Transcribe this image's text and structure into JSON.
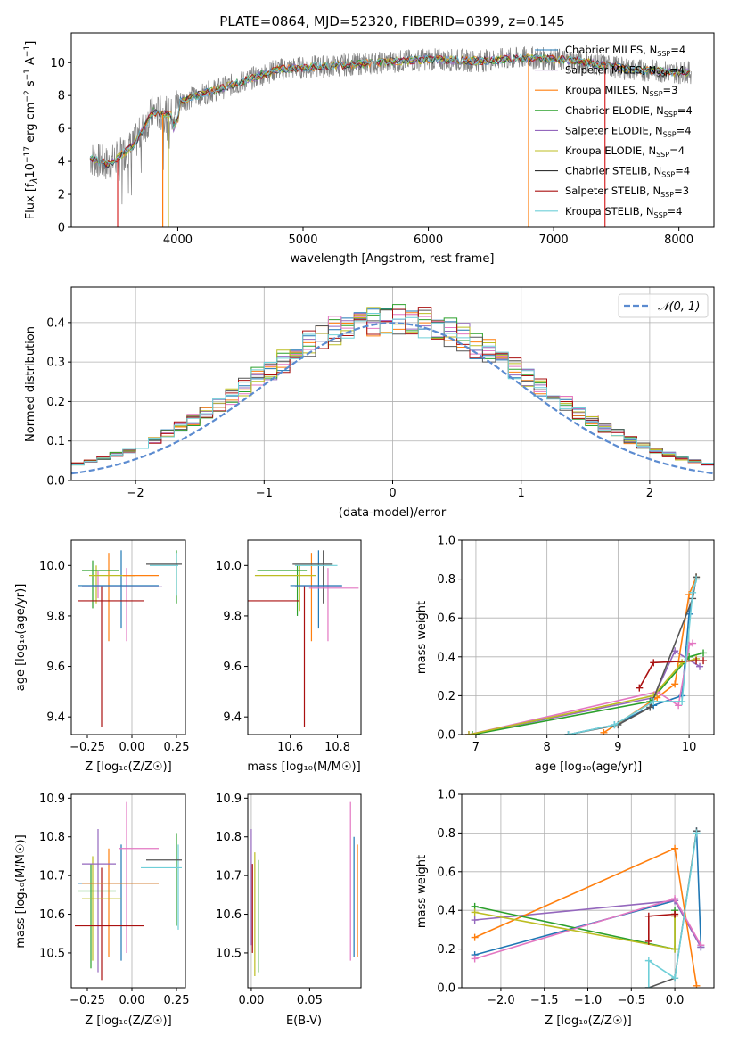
{
  "chart_data": [
    {
      "id": "spectrum",
      "type": "line",
      "title": "PLATE=0864, MJD=52320, FIBERID=0399, z=0.145",
      "xlabel": "wavelength [Angstrom, rest frame]",
      "ylabel_parts": [
        "Flux [f",
        "λ",
        "10",
        "−17",
        " erg cm",
        "−2",
        " s",
        "−1",
        " A",
        "−1",
        "]"
      ],
      "xlim": [
        3150,
        8280
      ],
      "ylim": [
        0,
        11.8
      ],
      "xticks": [
        4000,
        5000,
        6000,
        7000,
        8000
      ],
      "yticks": [
        0,
        2,
        4,
        6,
        8,
        10
      ],
      "continuum_knots": [
        [
          3300,
          4.2
        ],
        [
          3450,
          3.8
        ],
        [
          3650,
          5.0
        ],
        [
          3800,
          7.0
        ],
        [
          3950,
          6.8
        ],
        [
          4000,
          7.6
        ],
        [
          4200,
          8.1
        ],
        [
          4500,
          8.8
        ],
        [
          4800,
          9.6
        ],
        [
          5200,
          9.8
        ],
        [
          5600,
          10.0
        ],
        [
          6000,
          10.2
        ],
        [
          6400,
          10.1
        ],
        [
          6800,
          10.3
        ],
        [
          7200,
          10.1
        ],
        [
          7600,
          9.6
        ],
        [
          8000,
          9.4
        ],
        [
          8100,
          9.4
        ]
      ],
      "observed": {
        "color": "#808080",
        "x_range": [
          3300,
          8100
        ],
        "noise": 1.4
      },
      "model_spikes": [
        {
          "x": 3520,
          "color": "#d62728"
        },
        {
          "x": 3880,
          "color": "#ff7f0e"
        },
        {
          "x": 3925,
          "color": "#bcbd22"
        },
        {
          "x": 6800,
          "color": "#ff7f0e"
        },
        {
          "x": 7410,
          "color": "#d62728"
        }
      ],
      "legend_position": "top-right",
      "series": [
        {
          "name": "Chabrier MILES, N",
          "sub": "SSP",
          "suffix": "=4",
          "color": "#1f77b4"
        },
        {
          "name": "Salpeter MILES, N",
          "sub": "SSP",
          "suffix": "=4",
          "color": "#9467bd"
        },
        {
          "name": "Kroupa MILES, N",
          "sub": "SSP",
          "suffix": "=3",
          "color": "#ff7f0e"
        },
        {
          "name": "Chabrier ELODIE, N",
          "sub": "SSP",
          "suffix": "=4",
          "color": "#2ca02c"
        },
        {
          "name": "Salpeter ELODIE, N",
          "sub": "SSP",
          "suffix": "=4",
          "color": "#9467bd"
        },
        {
          "name": "Kroupa ELODIE, N",
          "sub": "SSP",
          "suffix": "=4",
          "color": "#bcbd22"
        },
        {
          "name": "Chabrier STELIB, N",
          "sub": "SSP",
          "suffix": "=4",
          "color": "#333333"
        },
        {
          "name": "Salpeter STELIB, N",
          "sub": "SSP",
          "suffix": "=3",
          "color": "#aa1111"
        },
        {
          "name": "Kroupa STELIB, N",
          "sub": "SSP",
          "suffix": "=4",
          "color": "#6fcfd8"
        }
      ]
    },
    {
      "id": "residuals",
      "type": "line",
      "xlabel": "(data-model)/error",
      "ylabel": "Normed distribution",
      "xlim": [
        -2.5,
        2.5
      ],
      "ylim": [
        0,
        0.49
      ],
      "xticks": [
        -2,
        -1,
        0,
        1,
        2
      ],
      "yticks": [
        0.0,
        0.1,
        0.2,
        0.3,
        0.4
      ],
      "grid": true,
      "legend_position": "top-right",
      "legend_label": "𝒩(0, 1)",
      "gaussian_color": "#5b8bd0",
      "hist_colors": [
        "#1f77b4",
        "#9467bd",
        "#ff7f0e",
        "#2ca02c",
        "#e377c2",
        "#bcbd22",
        "#555555",
        "#aa1111",
        "#6fcfd8"
      ],
      "bin_width": 0.1
    },
    {
      "id": "age_vs_Z",
      "type": "scatter",
      "xlabel": "Z [log₁₀(Z/Z☉)]",
      "ylabel": "age  [log₁₀(age/yr)]",
      "xlim": [
        -0.34,
        0.3
      ],
      "ylim": [
        9.33,
        10.1
      ],
      "xticks": [
        -0.25,
        0.0,
        0.25
      ],
      "yticks": [
        9.4,
        9.6,
        9.8,
        10.0
      ],
      "xtick_labels": [
        "−0.25",
        "0.00",
        "0.25"
      ],
      "yspans": [
        [
          -0.22,
          9.83,
          10.02,
          "#2ca02c"
        ],
        [
          -0.2,
          9.85,
          10.0,
          "#bcbd22"
        ],
        [
          -0.19,
          9.87,
          9.98,
          "#e377c2"
        ],
        [
          -0.17,
          9.36,
          9.92,
          "#aa1111"
        ],
        [
          -0.13,
          9.7,
          10.05,
          "#ff7f0e"
        ],
        [
          -0.06,
          9.75,
          10.06,
          "#1f77b4"
        ],
        [
          -0.03,
          9.7,
          9.99,
          "#e377c2"
        ],
        [
          0.25,
          9.85,
          10.06,
          "#2ca02c"
        ],
        [
          0.25,
          9.88,
          10.05,
          "#6fcfd8"
        ]
      ],
      "xspans": [
        [
          -0.28,
          -0.07,
          9.98,
          "#2ca02c"
        ],
        [
          -0.24,
          0.02,
          9.96,
          "#bcbd22"
        ],
        [
          -0.3,
          0.15,
          9.92,
          "#1f77b4"
        ],
        [
          -0.28,
          0.17,
          9.915,
          "#9467bd"
        ],
        [
          -0.3,
          0.07,
          9.86,
          "#aa1111"
        ],
        [
          -0.05,
          0.15,
          9.96,
          "#ff7f0e"
        ],
        [
          0.08,
          0.28,
          10.005,
          "#555555"
        ],
        [
          0.1,
          0.26,
          10.0,
          "#6fcfd8"
        ]
      ]
    },
    {
      "id": "age_vs_mass",
      "type": "scatter",
      "xlabel": "mass [log₁₀(M/M☉)]",
      "xlim": [
        10.42,
        10.9
      ],
      "ylim": [
        9.33,
        10.1
      ],
      "xticks": [
        10.6,
        10.8
      ],
      "yticks": [
        9.4,
        9.6,
        9.8,
        10.0
      ],
      "yspans": [
        [
          10.63,
          9.8,
          10.0,
          "#2ca02c"
        ],
        [
          10.64,
          9.82,
          10.0,
          "#bcbd22"
        ],
        [
          10.66,
          9.36,
          9.92,
          "#aa1111"
        ],
        [
          10.69,
          9.7,
          10.05,
          "#ff7f0e"
        ],
        [
          10.72,
          9.75,
          10.06,
          "#1f77b4"
        ],
        [
          10.76,
          9.7,
          9.99,
          "#e377c2"
        ],
        [
          10.74,
          9.85,
          10.06,
          "#555555"
        ]
      ],
      "xspans": [
        [
          10.46,
          10.67,
          9.98,
          "#2ca02c"
        ],
        [
          10.45,
          10.71,
          9.96,
          "#bcbd22"
        ],
        [
          10.6,
          10.82,
          9.92,
          "#1f77b4"
        ],
        [
          10.62,
          10.82,
          9.915,
          "#9467bd"
        ],
        [
          10.68,
          10.89,
          9.91,
          "#e377c2"
        ],
        [
          10.42,
          10.64,
          9.86,
          "#aa1111"
        ],
        [
          10.61,
          10.78,
          10.005,
          "#555555"
        ],
        [
          10.62,
          10.8,
          10.0,
          "#6fcfd8"
        ]
      ]
    },
    {
      "id": "weight_vs_age",
      "type": "line",
      "xlabel": "age  [log₁₀(age/yr)]",
      "ylabel": "mass weight",
      "xlim": [
        6.8,
        10.35
      ],
      "ylim": [
        0,
        1.0
      ],
      "xticks": [
        7,
        8,
        9,
        10
      ],
      "yticks": [
        0.0,
        0.2,
        0.4,
        0.6,
        0.8,
        1.0
      ],
      "grid": true,
      "series": [
        {
          "color": "#1f77b4",
          "points": [
            [
              8.3,
              0.0
            ],
            [
              8.95,
              0.05
            ],
            [
              9.5,
              0.15
            ],
            [
              9.9,
              0.2
            ],
            [
              10.0,
              0.62
            ],
            [
              10.1,
              0.81
            ]
          ]
        },
        {
          "color": "#9467bd",
          "points": [
            [
              6.9,
              0.0
            ],
            [
              9.5,
              0.19
            ],
            [
              9.8,
              0.43
            ],
            [
              10.15,
              0.35
            ]
          ]
        },
        {
          "color": "#ff7f0e",
          "points": [
            [
              8.8,
              0.01
            ],
            [
              9.55,
              0.19
            ],
            [
              9.8,
              0.26
            ],
            [
              10.0,
              0.72
            ],
            [
              10.1,
              0.81
            ]
          ]
        },
        {
          "color": "#2ca02c",
          "points": [
            [
              6.95,
              0.0
            ],
            [
              9.45,
              0.17
            ],
            [
              10.0,
              0.4
            ],
            [
              10.2,
              0.42
            ]
          ]
        },
        {
          "color": "#e377c2",
          "points": [
            [
              6.9,
              0.0
            ],
            [
              9.55,
              0.22
            ],
            [
              9.85,
              0.15
            ],
            [
              10.0,
              0.46
            ],
            [
              10.05,
              0.47
            ]
          ]
        },
        {
          "color": "#bcbd22",
          "points": [
            [
              6.9,
              0.0
            ],
            [
              9.5,
              0.2
            ],
            [
              9.9,
              0.37
            ],
            [
              10.1,
              0.39
            ]
          ]
        },
        {
          "color": "#555555",
          "points": [
            [
              8.3,
              0.0
            ],
            [
              9.0,
              0.05
            ],
            [
              9.45,
              0.14
            ],
            [
              10.05,
              0.7
            ],
            [
              10.1,
              0.81
            ]
          ]
        },
        {
          "color": "#aa1111",
          "points": [
            [
              9.3,
              0.24
            ],
            [
              9.5,
              0.37
            ],
            [
              10.1,
              0.38
            ],
            [
              10.2,
              0.38
            ]
          ]
        },
        {
          "color": "#6fcfd8",
          "points": [
            [
              8.3,
              0.0
            ],
            [
              8.95,
              0.05
            ],
            [
              9.5,
              0.17
            ],
            [
              9.9,
              0.17
            ],
            [
              10.05,
              0.73
            ],
            [
              10.1,
              0.8
            ]
          ]
        }
      ]
    },
    {
      "id": "mass_vs_Z",
      "type": "scatter",
      "xlabel": "Z [log₁₀(Z/Z☉)]",
      "ylabel": "mass [log₁₀(M/M☉)]",
      "xlim": [
        -0.34,
        0.3
      ],
      "ylim": [
        10.41,
        10.91
      ],
      "xticks": [
        -0.25,
        0.0,
        0.25
      ],
      "yticks": [
        10.5,
        10.6,
        10.7,
        10.8,
        10.9
      ],
      "xtick_labels": [
        "−0.25",
        "0.00",
        "0.25"
      ],
      "yspans": [
        [
          -0.23,
          10.46,
          10.73,
          "#2ca02c"
        ],
        [
          -0.22,
          10.48,
          10.75,
          "#bcbd22"
        ],
        [
          -0.19,
          10.45,
          10.82,
          "#9467bd"
        ],
        [
          -0.17,
          10.43,
          10.72,
          "#aa1111"
        ],
        [
          -0.13,
          10.49,
          10.77,
          "#ff7f0e"
        ],
        [
          -0.06,
          10.48,
          10.78,
          "#1f77b4"
        ],
        [
          -0.03,
          10.5,
          10.89,
          "#e377c2"
        ],
        [
          0.25,
          10.57,
          10.81,
          "#2ca02c"
        ],
        [
          0.26,
          10.56,
          10.78,
          "#6fcfd8"
        ]
      ],
      "xspans": [
        [
          -0.3,
          -0.09,
          10.66,
          "#2ca02c"
        ],
        [
          -0.28,
          -0.06,
          10.64,
          "#bcbd22"
        ],
        [
          -0.3,
          0.15,
          10.68,
          "#1f77b4"
        ],
        [
          -0.28,
          -0.09,
          10.73,
          "#9467bd"
        ],
        [
          -0.32,
          0.07,
          10.57,
          "#aa1111"
        ],
        [
          -0.28,
          0.15,
          10.68,
          "#ff7f0e"
        ],
        [
          -0.07,
          0.15,
          10.77,
          "#e377c2"
        ],
        [
          0.08,
          0.28,
          10.74,
          "#555555"
        ],
        [
          0.05,
          0.28,
          10.72,
          "#6fcfd8"
        ]
      ]
    },
    {
      "id": "mass_vs_ebv",
      "type": "scatter",
      "xlabel": "E(B-V)",
      "xlim": [
        -0.003,
        0.094
      ],
      "ylim": [
        10.41,
        10.91
      ],
      "xticks": [
        0.0,
        0.05
      ],
      "yticks": [
        10.5,
        10.6,
        10.7,
        10.8,
        10.9
      ],
      "xtick_labels": [
        "0.00",
        "0.05"
      ],
      "yspans": [
        [
          0.0,
          10.52,
          10.82,
          "#9467bd"
        ],
        [
          0.001,
          10.5,
          10.73,
          "#aa1111"
        ],
        [
          0.003,
          10.44,
          10.76,
          "#bcbd22"
        ],
        [
          0.006,
          10.45,
          10.74,
          "#2ca02c"
        ],
        [
          0.085,
          10.48,
          10.89,
          "#e377c2"
        ],
        [
          0.088,
          10.49,
          10.8,
          "#1f77b4"
        ],
        [
          0.091,
          10.49,
          10.78,
          "#ff7f0e"
        ]
      ],
      "xspans": []
    },
    {
      "id": "weight_vs_Z",
      "type": "line",
      "xlabel": "Z [log₁₀(Z/Z☉)]",
      "ylabel": "mass weight",
      "xlim": [
        -2.45,
        0.45
      ],
      "ylim": [
        0,
        1.0
      ],
      "xticks": [
        -2.0,
        -1.5,
        -1.0,
        -0.5,
        0.0
      ],
      "xtick_labels": [
        "−2.0",
        "−1.5",
        "−1.0",
        "−0.5",
        "0.0"
      ],
      "yticks": [
        0.0,
        0.2,
        0.4,
        0.6,
        0.8,
        1.0
      ],
      "grid": true,
      "series": [
        {
          "color": "#1f77b4",
          "points": [
            [
              -2.3,
              0.17
            ],
            [
              0.0,
              0.45
            ],
            [
              0.3,
              0.21
            ],
            [
              0.25,
              0.81
            ]
          ]
        },
        {
          "color": "#9467bd",
          "points": [
            [
              -2.3,
              0.35
            ],
            [
              0.0,
              0.45
            ],
            [
              0.3,
              0.21
            ]
          ]
        },
        {
          "color": "#ff7f0e",
          "points": [
            [
              -2.3,
              0.26
            ],
            [
              0.0,
              0.72
            ],
            [
              0.25,
              0.01
            ]
          ]
        },
        {
          "color": "#2ca02c",
          "points": [
            [
              -2.3,
              0.42
            ],
            [
              0.0,
              0.2
            ],
            [
              0.0,
              0.4
            ]
          ]
        },
        {
          "color": "#e377c2",
          "points": [
            [
              -2.3,
              0.15
            ],
            [
              0.0,
              0.46
            ],
            [
              0.3,
              0.22
            ]
          ]
        },
        {
          "color": "#bcbd22",
          "points": [
            [
              -2.3,
              0.39
            ],
            [
              0.0,
              0.2
            ],
            [
              0.0,
              0.37
            ]
          ]
        },
        {
          "color": "#555555",
          "points": [
            [
              -0.3,
              0.0
            ],
            [
              0.0,
              0.05
            ],
            [
              0.25,
              0.81
            ]
          ]
        },
        {
          "color": "#aa1111",
          "points": [
            [
              -0.3,
              0.24
            ],
            [
              -0.3,
              0.37
            ],
            [
              0.0,
              0.38
            ],
            [
              0.0,
              0.38
            ]
          ]
        },
        {
          "color": "#6fcfd8",
          "points": [
            [
              -0.3,
              0.0
            ],
            [
              -0.3,
              0.14
            ],
            [
              0.0,
              0.05
            ],
            [
              0.25,
              0.8
            ]
          ]
        }
      ]
    }
  ]
}
